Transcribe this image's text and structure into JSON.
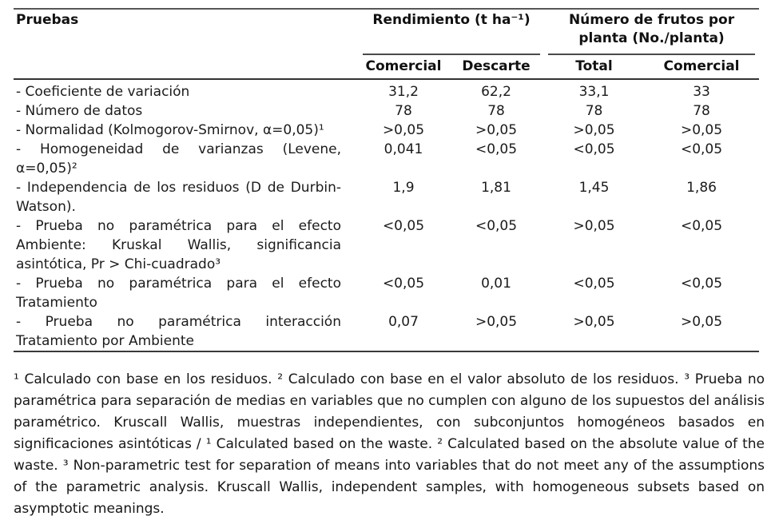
{
  "table": {
    "header": {
      "tests_col": "Pruebas",
      "groups": [
        {
          "label": "Rendimiento (t ha⁻¹)",
          "cols": [
            "Comercial",
            "Descarte"
          ]
        },
        {
          "label": "Número de frutos por planta (No./planta)",
          "cols": [
            "Total",
            "Comercial"
          ]
        }
      ]
    },
    "rows": [
      {
        "label": "- Coeficiente de variación",
        "values": [
          "31,2",
          "62,2",
          "33,1",
          "33"
        ]
      },
      {
        "label": "- Número de datos",
        "values": [
          "78",
          "78",
          "78",
          "78"
        ]
      },
      {
        "label": "- Normalidad (Kolmogorov-Smirnov, α=0,05)¹",
        "values": [
          ">0,05",
          ">0,05",
          ">0,05",
          ">0,05"
        ]
      },
      {
        "label": "- Homogeneidad de varianzas (Levene, α=0,05)²",
        "values": [
          "0,041",
          "<0,05",
          "<0,05",
          "<0,05"
        ]
      },
      {
        "label": "- Independencia de los residuos (D de Durbin-Watson).",
        "values": [
          "1,9",
          "1,81",
          "1,45",
          "1,86"
        ]
      },
      {
        "label": "- Prueba no paramétrica para el efecto Ambiente: Kruskal Wallis, significancia asintótica, Pr > Chi-cuadrado³",
        "values": [
          "<0,05",
          "<0,05",
          ">0,05",
          "<0,05"
        ]
      },
      {
        "label": "- Prueba no paramétrica para el efecto Tratamiento",
        "values": [
          "<0,05",
          "0,01",
          "<0,05",
          "<0,05"
        ]
      },
      {
        "label": "- Prueba no paramétrica interacción Tratamiento por Ambiente",
        "values": [
          "0,07",
          ">0,05",
          ">0,05",
          ">0,05"
        ]
      }
    ]
  },
  "footnotes": {
    "text": "¹ Calculado con base en los residuos. ² Calculado con base en el valor absoluto de los residuos. ³ Prueba no paramétrica para separación de medias en variables que no cumplen con alguno de los supuestos del análisis paramétrico. Kruscall Wallis, muestras independientes, con subconjuntos homogéneos basados en significaciones asintóticas / ¹ Calculated based on the waste. ² Calculated based on the absolute value of the waste. ³ Non-parametric test for separation of means into variables that do not meet any of the assumptions of the parametric analysis. Kruscall Wallis, independent samples, with homogeneous subsets based on asymptotic meanings."
  }
}
